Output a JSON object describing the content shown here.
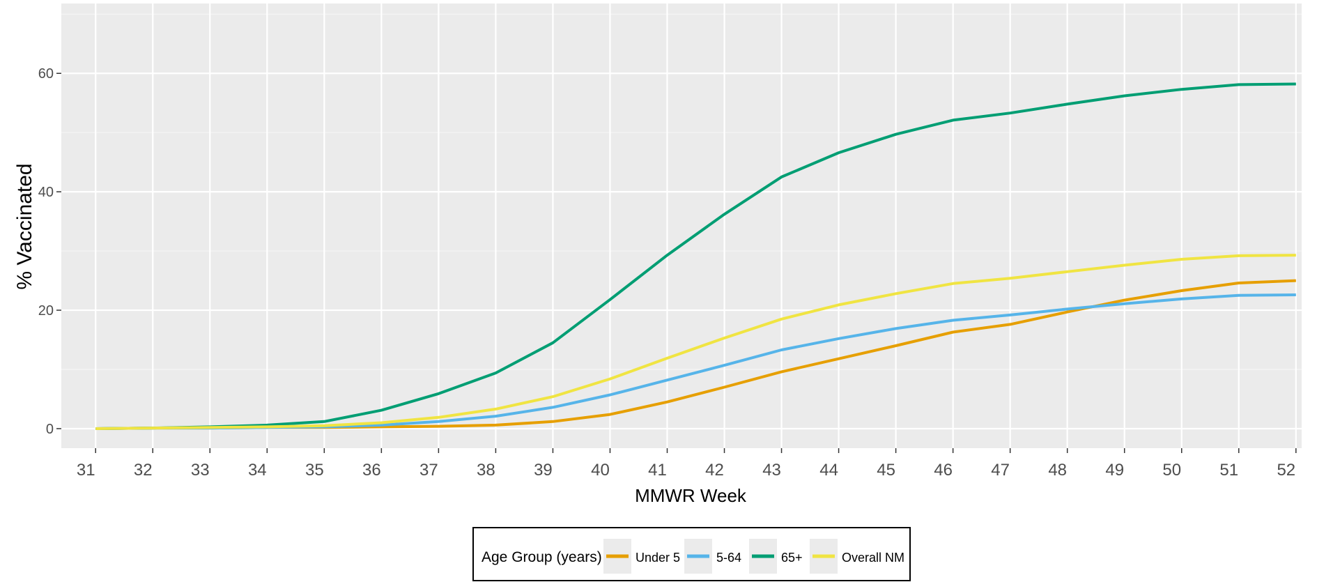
{
  "chart_data": {
    "type": "line",
    "title": "",
    "xlabel": "MMWR Week",
    "ylabel": "% Vaccinated",
    "x": [
      31,
      32,
      33,
      34,
      35,
      36,
      37,
      38,
      39,
      40,
      41,
      42,
      43,
      44,
      45,
      46,
      47,
      48,
      49,
      50,
      51,
      52
    ],
    "x_tick_labels": [
      "31",
      "32",
      "33",
      "34",
      "35",
      "36",
      "37",
      "38",
      "39",
      "40",
      "41",
      "42",
      "43",
      "44",
      "45",
      "46",
      "47",
      "48",
      "49",
      "50",
      "51",
      "52"
    ],
    "y_ticks": [
      0,
      20,
      40,
      60
    ],
    "y_tick_labels": [
      "0",
      "20",
      "40",
      "60"
    ],
    "xlim": [
      30.4,
      52.1
    ],
    "ylim": [
      -3.3,
      71.8
    ],
    "grid": true,
    "legend": {
      "title": "Age Group (years)",
      "position": "bottom"
    },
    "series": [
      {
        "name": "Under 5",
        "color": "#E69F00",
        "values": [
          0,
          0.1,
          0.1,
          0.2,
          0.2,
          0.3,
          0.4,
          0.6,
          1.2,
          2.4,
          4.5,
          7.0,
          9.6,
          11.8,
          14.0,
          16.3,
          17.6,
          19.7,
          21.7,
          23.3,
          24.6,
          25.0
        ]
      },
      {
        "name": "5-64",
        "color": "#56B4E9",
        "values": [
          0,
          0.1,
          0.1,
          0.2,
          0.3,
          0.6,
          1.2,
          2.1,
          3.6,
          5.7,
          8.2,
          10.7,
          13.3,
          15.2,
          16.9,
          18.3,
          19.2,
          20.2,
          21.1,
          21.9,
          22.5,
          22.6
        ]
      },
      {
        "name": "65+",
        "color": "#009E73",
        "values": [
          0,
          0.1,
          0.3,
          0.6,
          1.2,
          3.1,
          5.9,
          9.4,
          14.5,
          21.8,
          29.3,
          36.2,
          42.5,
          46.6,
          49.7,
          52.1,
          53.3,
          54.8,
          56.2,
          57.3,
          58.1,
          58.2
        ]
      },
      {
        "name": "Overall NM",
        "color": "#F0E442",
        "values": [
          0,
          0.1,
          0.2,
          0.3,
          0.5,
          1.0,
          1.9,
          3.3,
          5.4,
          8.4,
          11.9,
          15.3,
          18.5,
          20.9,
          22.8,
          24.5,
          25.4,
          26.5,
          27.6,
          28.6,
          29.2,
          29.3
        ]
      }
    ]
  }
}
